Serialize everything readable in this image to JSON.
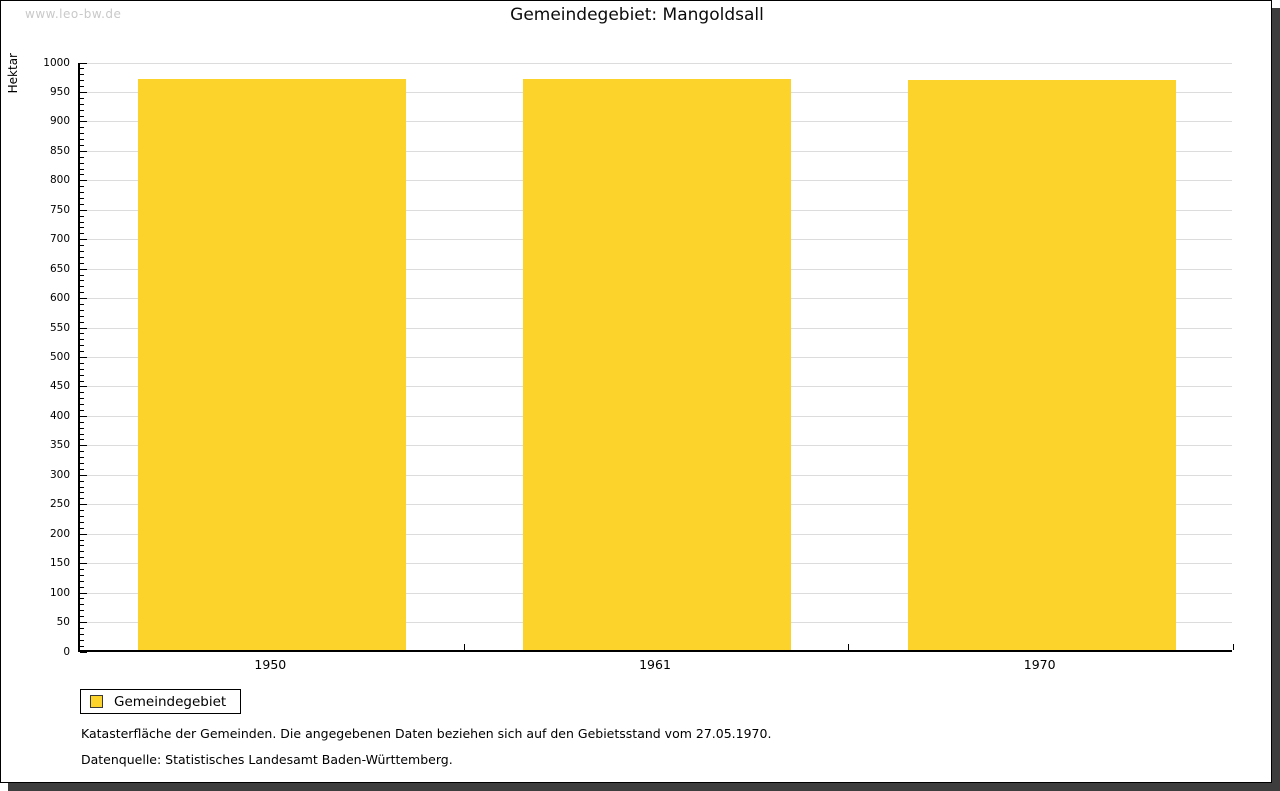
{
  "watermark": "www.leo-bw.de",
  "title": "Gemeindegebiet: Mangoldsall",
  "chart_data": {
    "type": "bar",
    "title": "Gemeindegebiet: Mangoldsall",
    "categories": [
      "1950",
      "1961",
      "1970"
    ],
    "series": [
      {
        "name": "Gemeindegebiet",
        "values": [
          970,
          969,
          967
        ]
      }
    ],
    "xlabel": "",
    "ylabel": "Hektar",
    "ylim": [
      0,
      1000
    ],
    "ytick_step": 50,
    "minor_tick_step": 10,
    "ytick_labels": [
      "0",
      "50",
      "100",
      "150",
      "200",
      "250",
      "300",
      "350",
      "400",
      "450",
      "500",
      "550",
      "600",
      "650",
      "700",
      "750",
      "800",
      "850",
      "900",
      "950",
      "1000"
    ],
    "grid": true,
    "bar_color": "#FCD32B",
    "legend_position": "bottom-left"
  },
  "legend": {
    "items": [
      {
        "label": "Gemeindegebiet",
        "color": "#FCD32B"
      }
    ]
  },
  "footnotes": [
    "Katasterfläche der Gemeinden. Die angegebenen Daten beziehen sich auf den Gebietsstand vom 27.05.1970.",
    "Datenquelle: Statistisches Landesamt Baden-Württemberg."
  ]
}
